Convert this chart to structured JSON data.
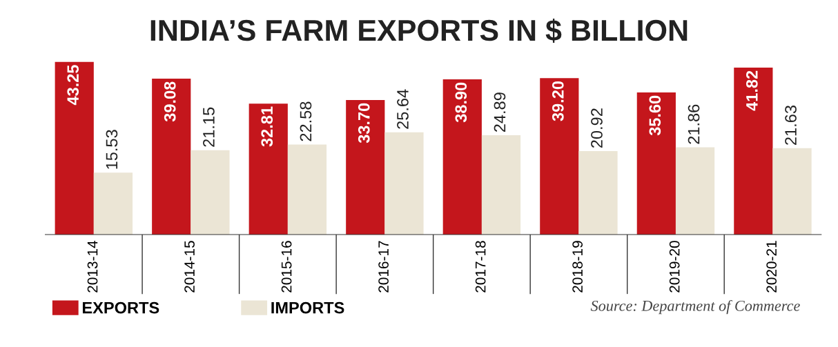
{
  "chart_data": {
    "type": "bar",
    "title": "INDIA’S FARM EXPORTS IN $ BILLION",
    "categories": [
      "2013-14",
      "2014-15",
      "2015-16",
      "2016-17",
      "2017-18",
      "2018-19",
      "2019-20",
      "2020-21"
    ],
    "series": [
      {
        "name": "EXPORTS",
        "color": "#c4161c",
        "values": [
          43.25,
          39.08,
          32.81,
          33.7,
          38.9,
          39.2,
          35.6,
          41.82
        ],
        "value_labels": [
          "43.25",
          "39.08",
          "32.81",
          "33.70",
          "38.90",
          "39.20",
          "35.60",
          "41.82"
        ]
      },
      {
        "name": "IMPORTS",
        "color": "#ebe5d5",
        "values": [
          15.53,
          21.15,
          22.58,
          25.64,
          24.89,
          20.92,
          21.86,
          21.63
        ],
        "value_labels": [
          "15.53",
          "21.15",
          "22.58",
          "25.64",
          "24.89",
          "20.92",
          "21.86",
          "21.63"
        ]
      }
    ],
    "legend": "bottom left",
    "annotations": [
      "Source: Department of Commerce"
    ]
  }
}
